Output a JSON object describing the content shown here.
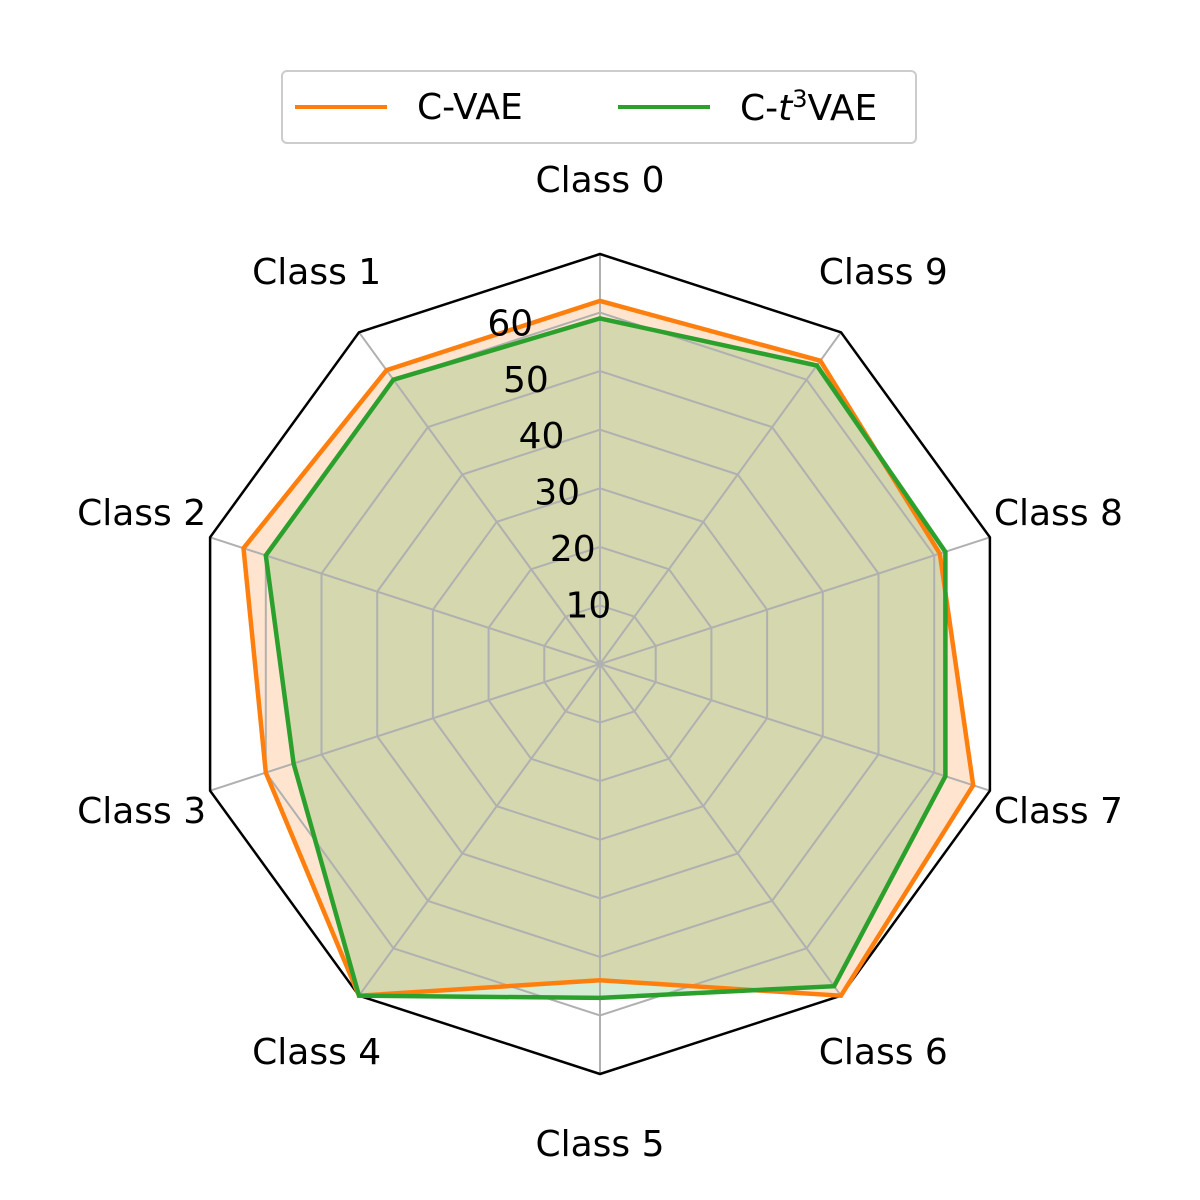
{
  "colors": {
    "c_vae": "#ff7f0e",
    "c_t3vae": "#2ca02c",
    "grid": "#b0b0b0",
    "frame": "#000000"
  },
  "legend": {
    "c_vae_label": "C-VAE",
    "c_t3vae_prefix": "C-",
    "c_t3vae_italic": "t",
    "c_t3vae_sup": "3",
    "c_t3vae_suffix": "VAE",
    "placement": "top-center, above chart"
  },
  "chart_data": {
    "type": "radar",
    "categories": [
      "Class 0",
      "Class 1",
      "Class 2",
      "Class 3",
      "Class 4",
      "Class 5",
      "Class 6",
      "Class 7",
      "Class 8",
      "Class 9"
    ],
    "rlim": [
      0,
      70
    ],
    "rticks": [
      10,
      20,
      30,
      40,
      50,
      60
    ],
    "rtick_labels": [
      "10",
      "20",
      "30",
      "40",
      "50",
      "60"
    ],
    "grid": true,
    "series": [
      {
        "name": "C-VAE",
        "values": [
          62,
          62,
          64,
          60,
          70,
          54,
          70,
          67,
          61,
          64
        ],
        "fill": true
      },
      {
        "name": "C-t3VAE",
        "values": [
          59,
          60,
          60,
          55,
          70,
          57,
          68,
          62,
          62,
          63
        ],
        "fill": true
      }
    ]
  }
}
